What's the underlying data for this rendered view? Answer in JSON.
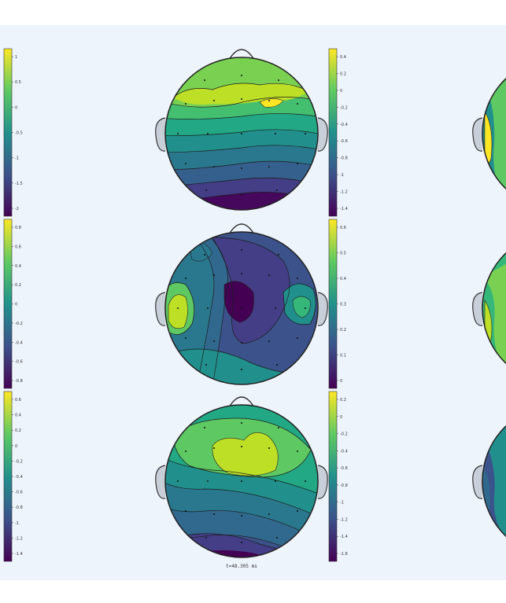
{
  "figure": {
    "time_label": "t=48.305 ms",
    "colormap": [
      "#440154",
      "#3b528b",
      "#21918c",
      "#5ec962",
      "#fde725"
    ]
  },
  "colorbars_left": [
    {
      "ticks": [
        "1",
        "0.5",
        "0",
        "-0.5",
        "-1",
        "-1.5",
        "-2"
      ]
    },
    {
      "ticks": [
        "0.8",
        "0.6",
        "0.4",
        "0.2",
        "0",
        "-0.2",
        "-0.4",
        "-0.6",
        "-0.8"
      ]
    },
    {
      "ticks": [
        "0.6",
        "0.4",
        "0.2",
        "0",
        "-0.2",
        "-0.4",
        "-0.6",
        "-0.8",
        "-1",
        "-1.2",
        "-1.4"
      ]
    }
  ],
  "colorbars_right": [
    {
      "ticks": [
        "0.4",
        "0.2",
        "0",
        "-0.2",
        "-0.4",
        "-0.6",
        "-0.8",
        "-1",
        "-1.2",
        "-1.4"
      ]
    },
    {
      "ticks": [
        "0.6",
        "0.5",
        "0.4",
        "0.3",
        "0.2",
        "0.1",
        "0"
      ]
    },
    {
      "ticks": [
        "0.2",
        "0",
        "-0.2",
        "-0.4",
        "-0.6",
        "-0.8",
        "-1",
        "-1.2",
        "-1.4",
        "-1.6"
      ]
    }
  ]
}
